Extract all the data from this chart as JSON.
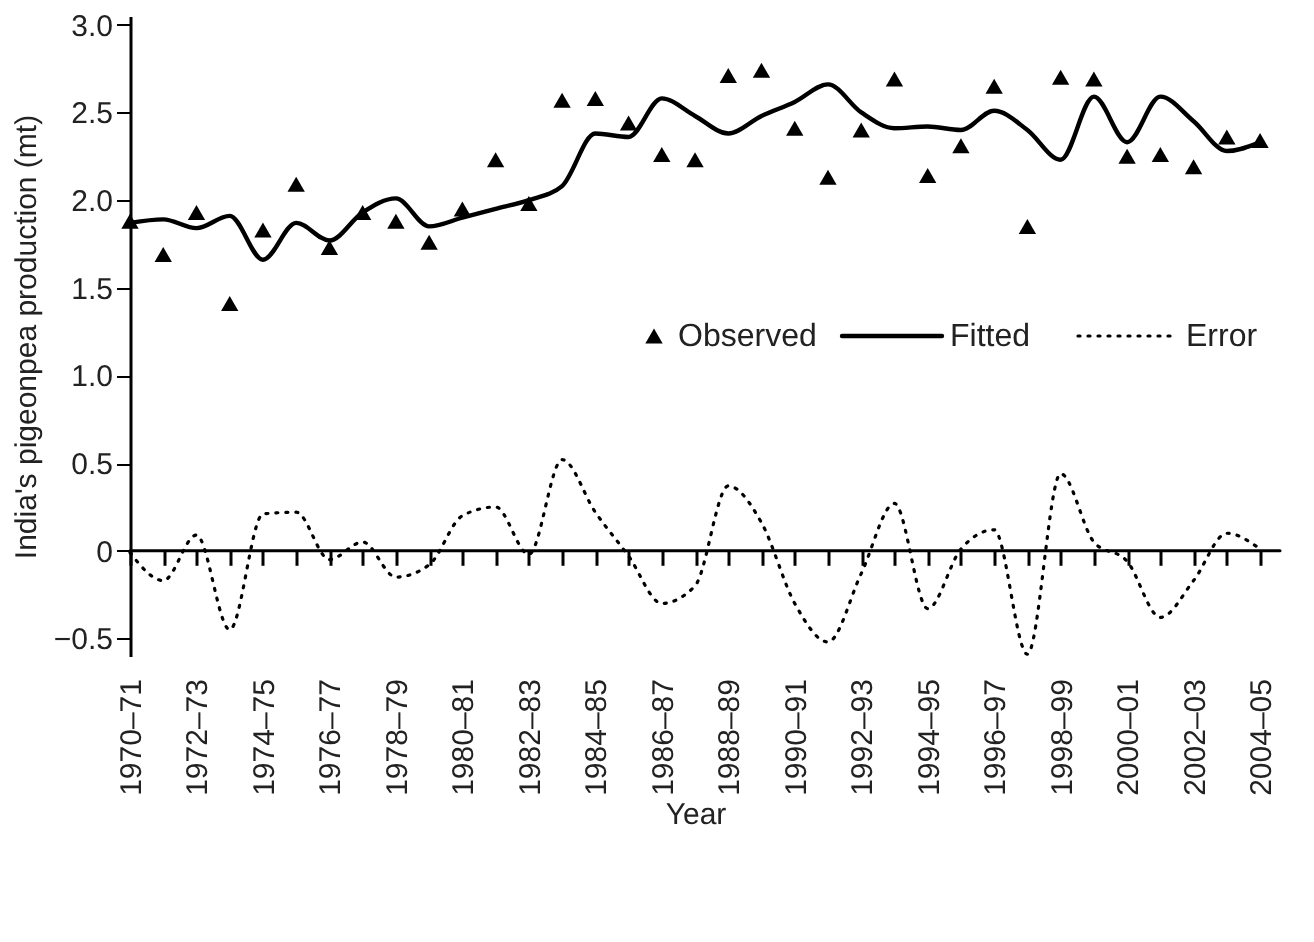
{
  "chart_data": {
    "type": "scatter",
    "xlabel": "Year",
    "ylabel": "India's pigeonpea production (mt)",
    "categories": [
      "1970–71",
      null,
      "1972–73",
      null,
      "1974–75",
      null,
      "1976–77",
      null,
      "1978–79",
      null,
      "1980–81",
      null,
      "1982–83",
      null,
      "1984–85",
      null,
      "1986–87",
      null,
      "1988–89",
      null,
      "1990–91",
      null,
      "1992–93",
      null,
      "1994–95",
      null,
      "1996–97",
      null,
      "1998–99",
      null,
      "2000–01",
      null,
      "2002–03",
      null,
      "2004–05"
    ],
    "ylim": [
      -0.6,
      3.05
    ],
    "yticks": [
      {
        "value": -0.5,
        "label": "−0.5"
      },
      0,
      {
        "value": 0.5,
        "label": "0.5"
      },
      {
        "value": 1.0,
        "label": "1.0"
      },
      {
        "value": 1.5,
        "label": "1.5"
      },
      {
        "value": 2.0,
        "label": "2.0"
      },
      {
        "value": 2.5,
        "label": "2.5"
      },
      {
        "value": 3.0,
        "label": "3.0"
      }
    ],
    "grid": false,
    "legend": "right",
    "ref_lines": [
      {
        "axis": "y",
        "value": 0,
        "color": "#000000",
        "line_style": "solid"
      }
    ],
    "series": [
      {
        "name": "Observed",
        "marker": "triangle",
        "color": "#000000",
        "values": [
          1.88,
          1.69,
          1.93,
          1.41,
          1.83,
          2.09,
          1.73,
          1.93,
          1.88,
          1.76,
          1.95,
          2.23,
          1.98,
          2.57,
          2.58,
          2.44,
          2.26,
          2.23,
          2.71,
          2.74,
          2.41,
          2.13,
          2.4,
          2.69,
          2.14,
          2.31,
          2.65,
          1.85,
          2.7,
          2.69,
          2.25,
          2.26,
          2.19,
          2.36,
          2.34
        ]
      },
      {
        "name": "Fitted",
        "type": "line",
        "line_style": "solid",
        "color": "#000000",
        "values": [
          1.87,
          1.89,
          1.84,
          1.91,
          1.66,
          1.87,
          1.77,
          1.93,
          2.01,
          1.85,
          1.9,
          1.95,
          2.0,
          2.08,
          2.38,
          2.36,
          2.58,
          2.48,
          2.38,
          2.48,
          2.56,
          2.66,
          2.5,
          2.41,
          2.42,
          2.4,
          2.51,
          2.4,
          2.23,
          2.59,
          2.33,
          2.59,
          2.45,
          2.28,
          2.33
        ]
      },
      {
        "name": "Error",
        "type": "line",
        "line_style": "dotted",
        "color": "#000000",
        "values": [
          -0.01,
          -0.17,
          0.09,
          -0.45,
          0.21,
          0.22,
          -0.05,
          0.05,
          -0.15,
          -0.08,
          0.2,
          0.25,
          -0.02,
          0.52,
          0.22,
          -0.03,
          -0.3,
          -0.2,
          0.37,
          0.16,
          -0.3,
          -0.52,
          -0.13,
          0.27,
          -0.33,
          0.01,
          0.12,
          -0.59,
          0.44,
          0.05,
          -0.06,
          -0.38,
          -0.17,
          0.1,
          0.01
        ]
      }
    ]
  }
}
